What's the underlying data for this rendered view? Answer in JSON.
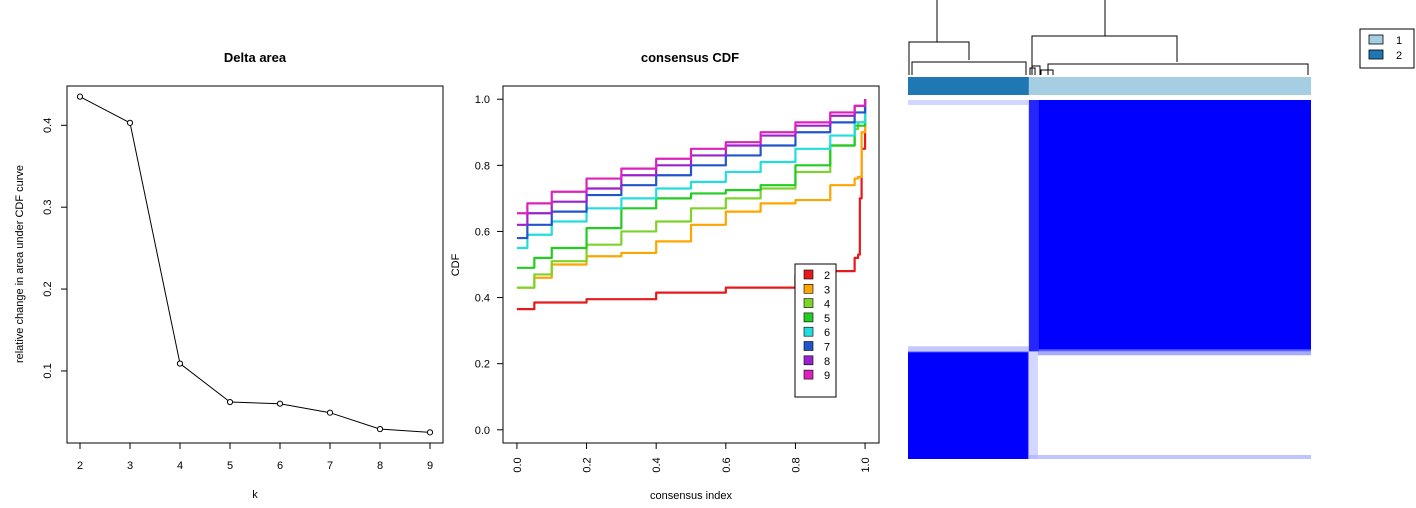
{
  "chart_data": [
    {
      "type": "line",
      "title": "Delta area",
      "xlabel": "k",
      "ylabel": "relative change in area under CDF curve",
      "x": [
        2,
        3,
        4,
        5,
        6,
        7,
        8,
        9
      ],
      "values": [
        0.435,
        0.403,
        0.109,
        0.062,
        0.06,
        0.049,
        0.029,
        0.025
      ],
      "xticks": [
        "2",
        "3",
        "4",
        "5",
        "6",
        "7",
        "8",
        "9"
      ],
      "yticks": [
        "0.1",
        "0.2",
        "0.3",
        "0.4"
      ],
      "ylim": [
        0.012,
        0.448
      ],
      "grid": false,
      "markers": "open-circle"
    },
    {
      "type": "line",
      "title": "consensus CDF",
      "xlabel": "consensus index",
      "ylabel": "CDF",
      "xticks": [
        "0.0",
        "0.2",
        "0.4",
        "0.6",
        "0.8",
        "1.0"
      ],
      "yticks": [
        "0.0",
        "0.2",
        "0.4",
        "0.6",
        "0.8",
        "1.0"
      ],
      "xlim": [
        -0.04,
        1.04
      ],
      "ylim": [
        -0.04,
        1.04
      ],
      "grid": false,
      "legend_position": "bottom-right",
      "series": [
        {
          "name": "2",
          "color": "#e41a1c",
          "points": [
            [
              0.0,
              0.365
            ],
            [
              0.05,
              0.385
            ],
            [
              0.2,
              0.395
            ],
            [
              0.4,
              0.415
            ],
            [
              0.6,
              0.43
            ],
            [
              0.8,
              0.47
            ],
            [
              0.9,
              0.48
            ],
            [
              0.97,
              0.52
            ],
            [
              0.98,
              0.53
            ],
            [
              0.985,
              0.7
            ],
            [
              0.99,
              0.85
            ],
            [
              1.0,
              1.0
            ]
          ]
        },
        {
          "name": "3",
          "color": "#ffa500",
          "points": [
            [
              0.0,
              0.43
            ],
            [
              0.05,
              0.46
            ],
            [
              0.1,
              0.5
            ],
            [
              0.2,
              0.525
            ],
            [
              0.3,
              0.535
            ],
            [
              0.4,
              0.57
            ],
            [
              0.5,
              0.62
            ],
            [
              0.6,
              0.66
            ],
            [
              0.7,
              0.685
            ],
            [
              0.8,
              0.695
            ],
            [
              0.9,
              0.74
            ],
            [
              0.97,
              0.76
            ],
            [
              0.98,
              0.765
            ],
            [
              0.99,
              0.9
            ],
            [
              1.0,
              1.0
            ]
          ]
        },
        {
          "name": "4",
          "color": "#7ed32b",
          "points": [
            [
              0.0,
              0.43
            ],
            [
              0.05,
              0.47
            ],
            [
              0.1,
              0.51
            ],
            [
              0.2,
              0.56
            ],
            [
              0.3,
              0.6
            ],
            [
              0.4,
              0.63
            ],
            [
              0.5,
              0.67
            ],
            [
              0.6,
              0.7
            ],
            [
              0.7,
              0.73
            ],
            [
              0.8,
              0.78
            ],
            [
              0.9,
              0.86
            ],
            [
              0.97,
              0.91
            ],
            [
              0.98,
              0.93
            ],
            [
              1.0,
              1.0
            ]
          ]
        },
        {
          "name": "5",
          "color": "#22cc22",
          "points": [
            [
              0.0,
              0.49
            ],
            [
              0.05,
              0.52
            ],
            [
              0.1,
              0.55
            ],
            [
              0.2,
              0.61
            ],
            [
              0.3,
              0.67
            ],
            [
              0.4,
              0.7
            ],
            [
              0.5,
              0.715
            ],
            [
              0.6,
              0.725
            ],
            [
              0.7,
              0.74
            ],
            [
              0.8,
              0.8
            ],
            [
              0.9,
              0.86
            ],
            [
              0.97,
              0.92
            ],
            [
              1.0,
              1.0
            ]
          ]
        },
        {
          "name": "6",
          "color": "#22dddd",
          "points": [
            [
              0.0,
              0.55
            ],
            [
              0.03,
              0.59
            ],
            [
              0.1,
              0.63
            ],
            [
              0.2,
              0.67
            ],
            [
              0.3,
              0.7
            ],
            [
              0.4,
              0.73
            ],
            [
              0.5,
              0.75
            ],
            [
              0.6,
              0.78
            ],
            [
              0.7,
              0.81
            ],
            [
              0.8,
              0.85
            ],
            [
              0.9,
              0.89
            ],
            [
              0.97,
              0.93
            ],
            [
              1.0,
              1.0
            ]
          ]
        },
        {
          "name": "7",
          "color": "#2255cc",
          "points": [
            [
              0.0,
              0.58
            ],
            [
              0.03,
              0.62
            ],
            [
              0.1,
              0.66
            ],
            [
              0.2,
              0.71
            ],
            [
              0.3,
              0.74
            ],
            [
              0.4,
              0.77
            ],
            [
              0.5,
              0.8
            ],
            [
              0.6,
              0.83
            ],
            [
              0.7,
              0.86
            ],
            [
              0.8,
              0.9
            ],
            [
              0.9,
              0.93
            ],
            [
              0.97,
              0.96
            ],
            [
              1.0,
              1.0
            ]
          ]
        },
        {
          "name": "8",
          "color": "#9a22cc",
          "points": [
            [
              0.0,
              0.62
            ],
            [
              0.03,
              0.655
            ],
            [
              0.1,
              0.69
            ],
            [
              0.2,
              0.73
            ],
            [
              0.3,
              0.77
            ],
            [
              0.4,
              0.8
            ],
            [
              0.5,
              0.83
            ],
            [
              0.6,
              0.86
            ],
            [
              0.7,
              0.89
            ],
            [
              0.8,
              0.92
            ],
            [
              0.9,
              0.95
            ],
            [
              0.97,
              0.98
            ],
            [
              1.0,
              1.0
            ]
          ]
        },
        {
          "name": "9",
          "color": "#dd22bb",
          "points": [
            [
              0.0,
              0.655
            ],
            [
              0.03,
              0.685
            ],
            [
              0.1,
              0.72
            ],
            [
              0.2,
              0.76
            ],
            [
              0.3,
              0.79
            ],
            [
              0.4,
              0.82
            ],
            [
              0.5,
              0.85
            ],
            [
              0.6,
              0.87
            ],
            [
              0.7,
              0.9
            ],
            [
              0.8,
              0.93
            ],
            [
              0.9,
              0.96
            ],
            [
              0.97,
              0.98
            ],
            [
              1.0,
              1.0
            ]
          ]
        }
      ]
    },
    {
      "type": "heatmap",
      "values": [
        [
          1,
          0
        ],
        [
          0,
          1
        ]
      ],
      "cluster_order": [
        "2",
        "1"
      ],
      "cluster_fractions": [
        0.3,
        0.7
      ],
      "colors": {
        "high": "#0000ff",
        "low": "#ffffff"
      },
      "dendrogram": true,
      "legend_position": "top-right",
      "legend": [
        {
          "label": "1",
          "color": "#a6cee3"
        },
        {
          "label": "2",
          "color": "#1f78b4"
        }
      ]
    }
  ]
}
